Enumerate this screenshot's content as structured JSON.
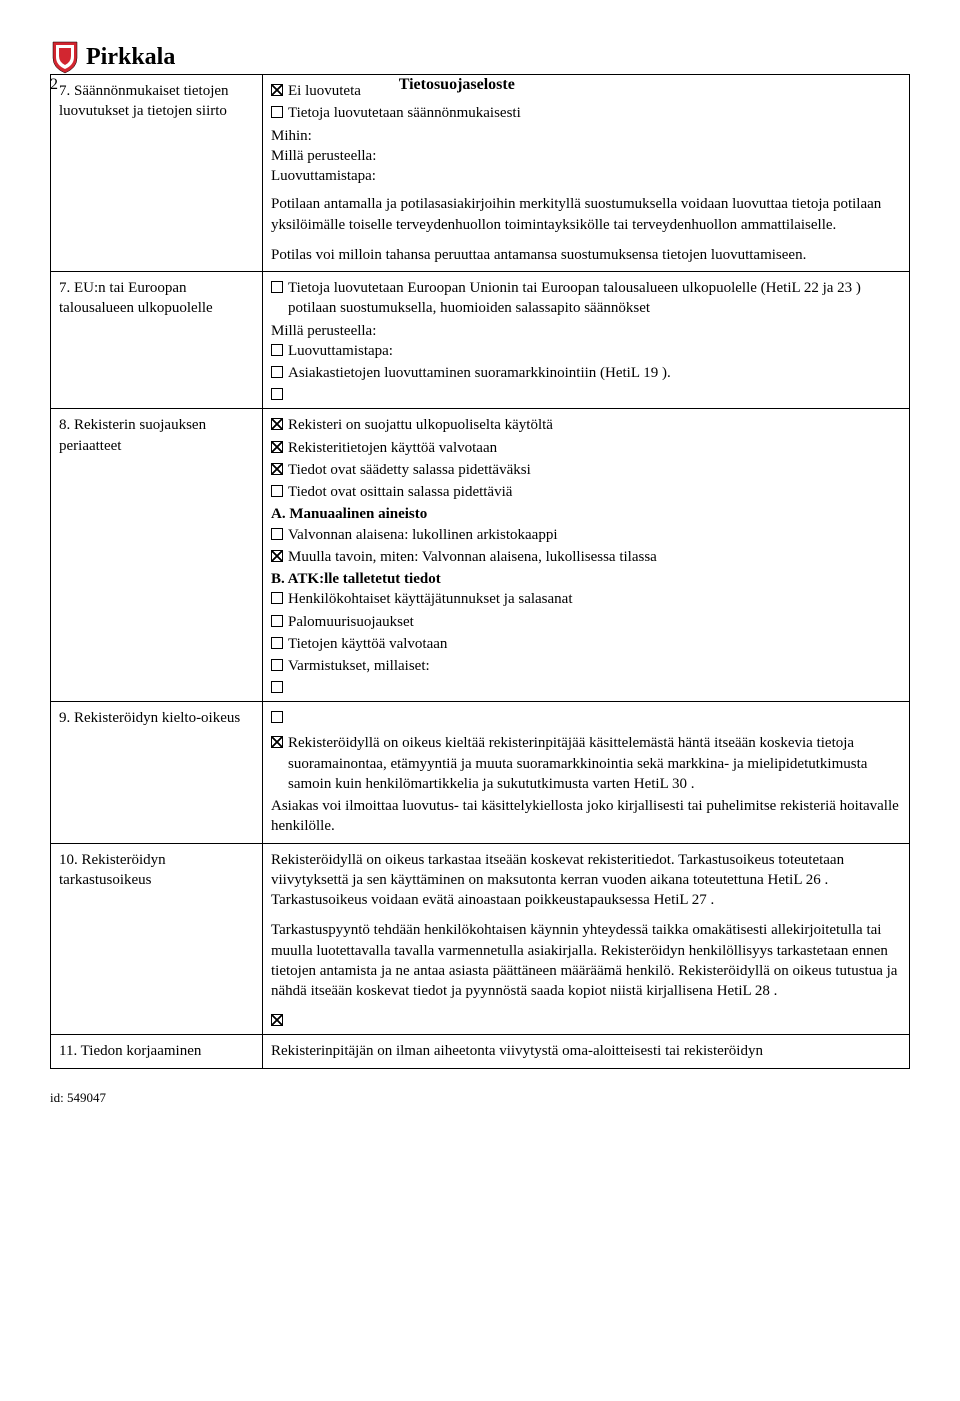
{
  "header": {
    "brand": "Pirkkala",
    "doc_title": "Tietosuojaseloste",
    "page_number": "2",
    "shield_color": "#d22630"
  },
  "rows": [
    {
      "left": "7. Säännönmukaiset tietojen luovutukset ja tietojen siirto",
      "right": [
        {
          "type": "check",
          "checked": true,
          "text": "Ei luovuteta"
        },
        {
          "type": "check",
          "checked": false,
          "text": "Tietoja luovutetaan säännönmukaisesti"
        },
        {
          "type": "text",
          "text": "Mihin:"
        },
        {
          "type": "text",
          "text": "Millä perusteella:"
        },
        {
          "type": "text",
          "text": "Luovuttamistapa:"
        },
        {
          "type": "spacer"
        },
        {
          "type": "para",
          "text": "Potilaan antamalla ja potilasasiakirjoihin merkityllä suostumuksella voidaan luovuttaa tietoja potilaan yksilöimälle toiselle terveydenhuollon toimintayksikölle tai terveydenhuollon ammattilaiselle."
        },
        {
          "type": "para",
          "text": "Potilas voi milloin tahansa peruuttaa antamansa  suostumuksensa tietojen luovuttamiseen."
        }
      ]
    },
    {
      "left": "7. EU:n tai Euroopan talousalueen ulkopuolelle",
      "right": [
        {
          "type": "check",
          "checked": false,
          "text": "Tietoja luovutetaan Euroopan Unionin tai Euroopan talousalueen ulkopuolelle (HetiL 22 ja 23 ) potilaan suostumuksella, huomioiden salassapito säännökset"
        },
        {
          "type": "text",
          "text": "Millä perusteella:"
        },
        {
          "type": "check",
          "checked": false,
          "text": "Luovuttamistapa:"
        },
        {
          "type": "check",
          "checked": false,
          "text": "Asiakastietojen luovuttaminen suoramarkkinointiin (HetiL 19 )."
        },
        {
          "type": "check",
          "checked": false,
          "text": ""
        }
      ]
    },
    {
      "left": "8. Rekisterin suojauksen periaatteet",
      "right": [
        {
          "type": "check",
          "checked": true,
          "text": "Rekisteri on suojattu ulkopuoliselta käytöltä"
        },
        {
          "type": "check",
          "checked": true,
          "text": "Rekisteritietojen käyttöä valvotaan"
        },
        {
          "type": "check",
          "checked": true,
          "text": "Tiedot ovat säädetty salassa pidettäväksi"
        },
        {
          "type": "check",
          "checked": false,
          "text": "Tiedot ovat osittain salassa pidettäviä"
        },
        {
          "type": "textbold",
          "text": "A. Manuaalinen aineisto"
        },
        {
          "type": "check",
          "checked": false,
          "text": "Valvonnan alaisena: lukollinen arkistokaappi"
        },
        {
          "type": "check",
          "checked": true,
          "text": "Muulla tavoin, miten: Valvonnan alaisena, lukollisessa tilassa"
        },
        {
          "type": "textbold",
          "text": "B. ATK:lle talletetut tiedot"
        },
        {
          "type": "check",
          "checked": false,
          "text": "Henkilökohtaiset käyttäjätunnukset ja salasanat"
        },
        {
          "type": "check",
          "checked": false,
          "text": "Palomuurisuojaukset"
        },
        {
          "type": "check",
          "checked": false,
          "text": "Tietojen käyttöä valvotaan"
        },
        {
          "type": "check",
          "checked": false,
          "text": "Varmistukset, millaiset:"
        },
        {
          "type": "check",
          "checked": false,
          "text": ""
        }
      ]
    },
    {
      "left": "9. Rekisteröidyn kielto-oikeus",
      "right": [
        {
          "type": "check",
          "checked": false,
          "text": ""
        },
        {
          "type": "spacer"
        },
        {
          "type": "check",
          "checked": true,
          "text": "Rekisteröidyllä on oikeus kieltää rekisterinpitäjää käsittelemästä häntä itseään koskevia tietoja suoramainontaa, etämyyntiä ja muuta suoramarkkinointia sekä markkina- ja mielipidetutkimusta samoin kuin henkilömartikkelia ja sukututkimusta varten HetiL 30 ."
        },
        {
          "type": "text",
          "text": "Asiakas voi ilmoittaa luovutus- tai käsittelykiellosta joko kirjallisesti tai puhelimitse rekisteriä hoitavalle henkilölle."
        }
      ]
    },
    {
      "left": "10. Rekisteröidyn tarkastusoikeus",
      "right": [
        {
          "type": "para",
          "text": "Rekisteröidyllä on oikeus tarkastaa itseään koskevat rekisteritiedot. Tarkastusoikeus toteutetaan viivytyksettä ja sen käyttäminen on maksutonta kerran vuoden aikana toteutettuna HetiL 26 . Tarkastusoikeus voidaan evätä ainoastaan poikkeustapauksessa HetiL 27 ."
        },
        {
          "type": "para",
          "text": "Tarkastuspyyntö tehdään henkilökohtaisen käynnin yhteydessä taikka omakätisesti allekirjoitetulla tai muulla luotettavalla tavalla varmennetulla asiakirjalla. Rekisteröidyn henkilöllisyys tarkastetaan ennen tietojen antamista ja ne antaa asiasta päättäneen määräämä henkilö. Rekisteröidyllä on oikeus tutustua ja nähdä itseään koskevat tiedot ja pyynnöstä saada kopiot niistä kirjallisena HetiL 28 ."
        },
        {
          "type": "check",
          "checked": true,
          "text": ""
        }
      ]
    },
    {
      "left": "11. Tiedon korjaaminen",
      "right": [
        {
          "type": "text",
          "text": "Rekisterinpitäjän on ilman aiheetonta viivytystä oma-aloitteisesti tai rekisteröidyn"
        }
      ]
    }
  ],
  "footer_id": "id: 549047"
}
